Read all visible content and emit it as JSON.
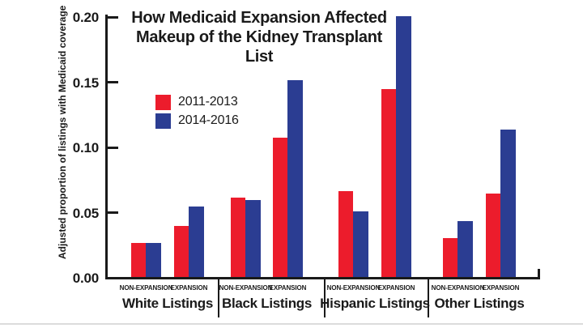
{
  "chart_data": {
    "type": "bar",
    "title": "How Medicaid Expansion Affected Makeup of the Kidney Transplant List",
    "title_lines": [
      "How Medicaid Expansion Affected",
      "Makeup of the Kidney Transplant List"
    ],
    "ylabel": "Adjusted proportion of listings with Medicaid coverage",
    "ylim": [
      0,
      0.2
    ],
    "grid": false,
    "legend_position": "upper-left-inside",
    "yticks": [
      {
        "label": "0.00",
        "value": 0.0
      },
      {
        "label": "0.05",
        "value": 0.05
      },
      {
        "label": "0.10",
        "value": 0.1
      },
      {
        "label": "0.15",
        "value": 0.15
      },
      {
        "label": "0.20",
        "value": 0.2
      }
    ],
    "series": [
      {
        "name": "2011-2013",
        "color": "#EC1C2C"
      },
      {
        "name": "2014-2016",
        "color": "#2B3D92"
      }
    ],
    "groups": [
      {
        "label": "White Listings",
        "pairs": [
          {
            "label": "NON-EXPANSION",
            "values": [
              0.026,
              0.026
            ]
          },
          {
            "label": "EXPANSION",
            "values": [
              0.039,
              0.054
            ]
          }
        ]
      },
      {
        "label": "Black Listings",
        "pairs": [
          {
            "label": "NON-EXPANSION",
            "values": [
              0.061,
              0.059
            ]
          },
          {
            "label": "EXPANSION",
            "values": [
              0.107,
              0.151
            ]
          }
        ]
      },
      {
        "label": "Hispanic Listings",
        "pairs": [
          {
            "label": "NON-EXPANSION",
            "values": [
              0.066,
              0.05
            ]
          },
          {
            "label": "EXPANSION",
            "values": [
              0.144,
              0.2
            ]
          }
        ]
      },
      {
        "label": "Other Listings",
        "pairs": [
          {
            "label": "NON-EXPANSION",
            "values": [
              0.03,
              0.043
            ]
          },
          {
            "label": "EXPANSION",
            "values": [
              0.064,
              0.113
            ]
          }
        ]
      }
    ]
  }
}
